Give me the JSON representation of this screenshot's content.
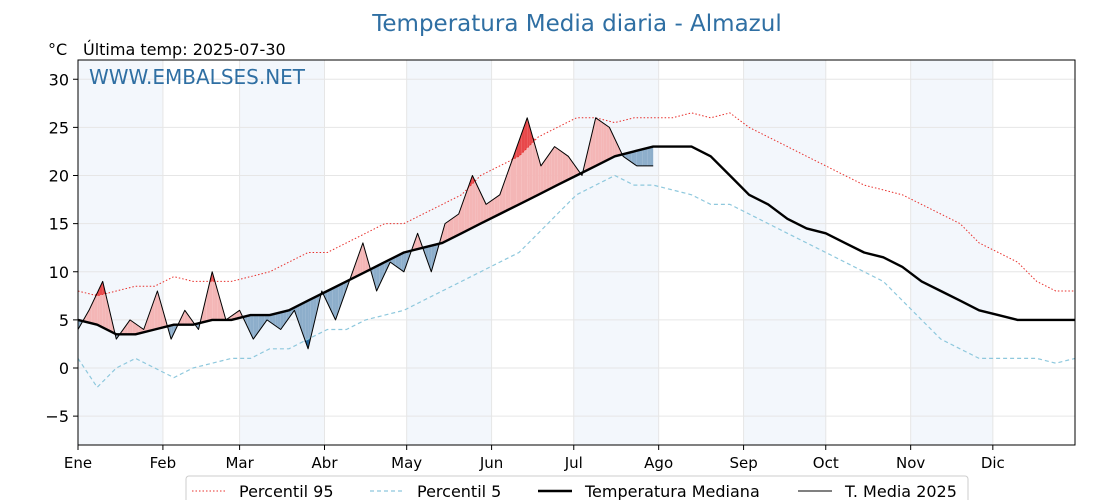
{
  "chart_data": {
    "type": "line",
    "title": "Temperatura Media diaria - Almazul",
    "unit_label": "°C",
    "last_temp_text": "Última temp: 2025-07-30",
    "watermark": "WWW.EMBALSES.NET",
    "ylim": [
      -8,
      32
    ],
    "yticks": [
      30,
      25,
      20,
      15,
      10,
      5,
      0,
      -5
    ],
    "grid": true,
    "month_labels": [
      "Ene",
      "Feb",
      "Mar",
      "Abr",
      "May",
      "Jun",
      "Jul",
      "Ago",
      "Sep",
      "Oct",
      "Nov",
      "Dic"
    ],
    "legend_placement": "bottom",
    "legend": [
      {
        "key": "p95",
        "label": "Percentil 95",
        "color": "#e8302c",
        "style": "dotted"
      },
      {
        "key": "p5",
        "label": "Percentil 5",
        "color": "#8ec8dd",
        "style": "dashed"
      },
      {
        "key": "median",
        "label": "Temperatura Mediana",
        "color": "#000000",
        "style": "solid-thick"
      },
      {
        "key": "t2025",
        "label": "T. Media 2025",
        "color": "#000000",
        "style": "solid-thin"
      }
    ],
    "colors": {
      "above_median": "#f4b6b6",
      "above_p95": "#e8484a",
      "below_median": "#8daecb",
      "below_p5": "#1f5f94",
      "band_shading": "#f3f7fc",
      "title": "#2f6fa3"
    },
    "series": [
      {
        "name": "Percentil 95",
        "key": "p95",
        "x": [
          1,
          8,
          15,
          22,
          29,
          36,
          43,
          50,
          57,
          64,
          71,
          78,
          85,
          92,
          99,
          106,
          113,
          120,
          127,
          134,
          141,
          148,
          155,
          162,
          169,
          176,
          183,
          190,
          197,
          204,
          211,
          218,
          225,
          232,
          239,
          246,
          253,
          260,
          267,
          274,
          281,
          288,
          295,
          302,
          309,
          316,
          323,
          330,
          337,
          344,
          351,
          358,
          365
        ],
        "y": [
          8,
          7.5,
          8,
          8.5,
          8.5,
          9.5,
          9,
          9,
          9,
          9.5,
          10,
          11,
          12,
          12,
          13,
          14,
          15,
          15,
          16,
          17,
          18,
          20,
          21,
          22,
          24,
          25,
          26,
          26,
          25.5,
          26,
          26,
          26,
          26.5,
          26,
          26.5,
          25,
          24,
          23,
          22,
          21,
          20,
          19,
          18.5,
          18,
          17,
          16,
          15,
          13,
          12,
          11,
          9,
          8,
          8
        ]
      },
      {
        "name": "Percentil 5",
        "key": "p5",
        "x": [
          1,
          8,
          15,
          22,
          29,
          36,
          43,
          50,
          57,
          64,
          71,
          78,
          85,
          92,
          99,
          106,
          113,
          120,
          127,
          134,
          141,
          148,
          155,
          162,
          169,
          176,
          183,
          190,
          197,
          204,
          211,
          218,
          225,
          232,
          239,
          246,
          253,
          260,
          267,
          274,
          281,
          288,
          295,
          302,
          309,
          316,
          323,
          330,
          337,
          344,
          351,
          358,
          365
        ],
        "y": [
          1,
          -2,
          0,
          1,
          0,
          -1,
          0,
          0.5,
          1,
          1,
          2,
          2,
          3,
          4,
          4,
          5,
          5.5,
          6,
          7,
          8,
          9,
          10,
          11,
          12,
          14,
          16,
          18,
          19,
          20,
          19,
          19,
          18.5,
          18,
          17,
          17,
          16,
          15,
          14,
          13,
          12,
          11,
          10,
          9,
          7,
          5,
          3,
          2,
          1,
          1,
          1,
          1,
          0.5,
          1
        ]
      },
      {
        "name": "Temperatura Mediana",
        "key": "median",
        "x": [
          1,
          8,
          15,
          22,
          29,
          36,
          43,
          50,
          57,
          64,
          71,
          78,
          85,
          92,
          99,
          106,
          113,
          120,
          127,
          134,
          141,
          148,
          155,
          162,
          169,
          176,
          183,
          190,
          197,
          204,
          211,
          218,
          225,
          232,
          239,
          246,
          253,
          260,
          267,
          274,
          281,
          288,
          295,
          302,
          309,
          316,
          323,
          330,
          337,
          344,
          351,
          358,
          365
        ],
        "y": [
          5,
          4.5,
          3.5,
          3.5,
          4,
          4.5,
          4.5,
          5,
          5,
          5.5,
          5.5,
          6,
          7,
          8,
          9,
          10,
          11,
          12,
          12.5,
          13,
          14,
          15,
          16,
          17,
          18,
          19,
          20,
          21,
          22,
          22.5,
          23,
          23,
          23,
          22,
          20,
          18,
          17,
          15.5,
          14.5,
          14,
          13,
          12,
          11.5,
          10.5,
          9,
          8,
          7,
          6,
          5.5,
          5,
          5,
          5,
          5
        ]
      },
      {
        "name": "T. Media 2025",
        "key": "t2025",
        "x": [
          1,
          5,
          10,
          15,
          20,
          25,
          30,
          35,
          40,
          45,
          50,
          55,
          60,
          65,
          70,
          75,
          80,
          85,
          90,
          95,
          100,
          105,
          110,
          115,
          120,
          125,
          130,
          135,
          140,
          145,
          150,
          155,
          160,
          165,
          170,
          175,
          180,
          185,
          190,
          195,
          200,
          205,
          211
        ],
        "y": [
          4,
          6,
          9,
          3,
          5,
          4,
          8,
          3,
          6,
          4,
          10,
          5,
          6,
          3,
          5,
          4,
          6,
          2,
          8,
          5,
          9,
          13,
          8,
          11,
          10,
          14,
          10,
          15,
          16,
          20,
          17,
          18,
          22,
          26,
          21,
          23,
          22,
          20,
          26,
          25,
          22,
          21,
          21
        ]
      }
    ]
  }
}
